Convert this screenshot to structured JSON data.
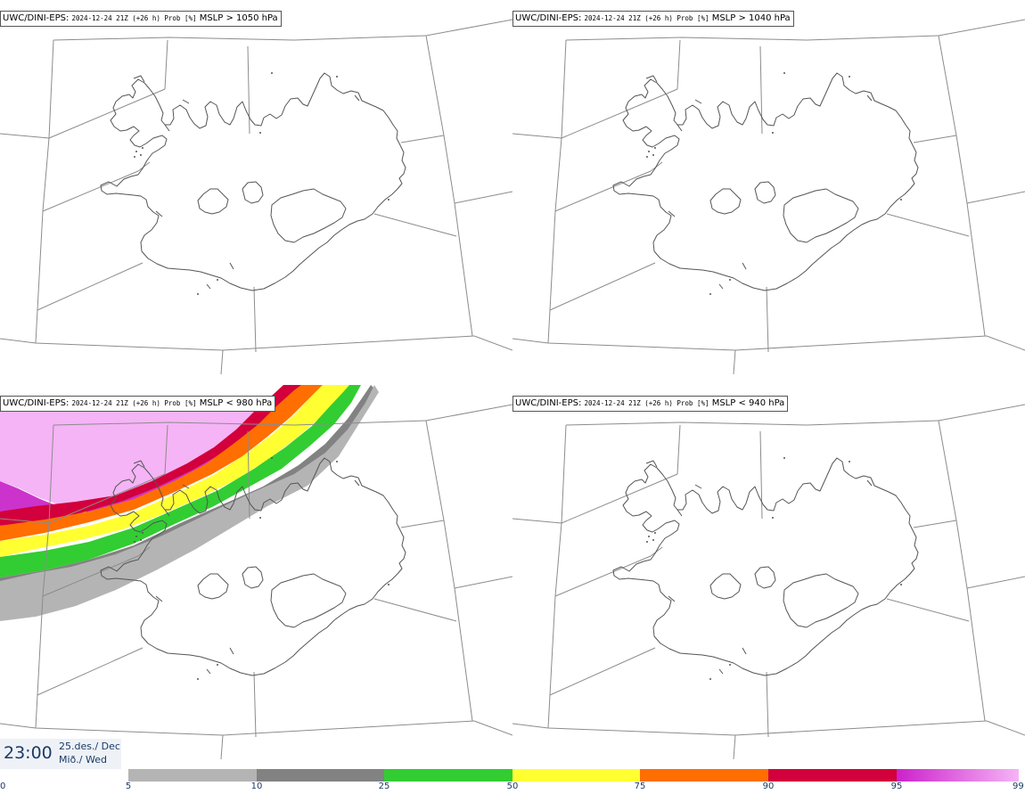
{
  "panels": [
    {
      "model": "UWC/DINI-EPS",
      "run_info": "2024-12-24 21Z (+26 h) Prob [%]",
      "threshold": "MSLP > 1050 hPa",
      "has_shading": false
    },
    {
      "model": "UWC/DINI-EPS",
      "run_info": "2024-12-24 21Z (+26 h) Prob [%]",
      "threshold": "MSLP > 1040 hPa",
      "has_shading": false
    },
    {
      "model": "UWC/DINI-EPS",
      "run_info": "2024-12-24 21Z (+26 h) Prob [%]",
      "threshold": "MSLP < 980 hPa",
      "has_shading": true
    },
    {
      "model": "UWC/DINI-EPS",
      "run_info": "2024-12-24 21Z (+26 h) Prob [%]",
      "threshold": "MSLP < 940 hPa",
      "has_shading": false
    }
  ],
  "valid_time": {
    "time": "23:00",
    "date_line1": "25.des./ Dec",
    "date_line2": "Mið./ Wed"
  },
  "legend": {
    "ticks": [
      "0",
      "5",
      "10",
      "25",
      "50",
      "75",
      "90",
      "95",
      "99"
    ],
    "colors": [
      "#ffffff",
      "#b4b4b4",
      "#828282",
      "#32cd32",
      "#ffff32",
      "#ff6e00",
      "#d2003c",
      "#cc22cc"
    ],
    "last_color_end": "#f5b4f5"
  },
  "colors": {
    "coast": "#555555",
    "grid": "#8c8c8c",
    "text_blue": "#1b3a66",
    "band_magenta_light": "#f5b4f5",
    "band_magenta": "#cc33cc",
    "band_red": "#d2003c",
    "band_orange": "#ff6e00",
    "band_yellow": "#ffff32",
    "band_green": "#32cd32",
    "band_dgrey": "#828282",
    "band_lgrey": "#b4b4b4"
  }
}
